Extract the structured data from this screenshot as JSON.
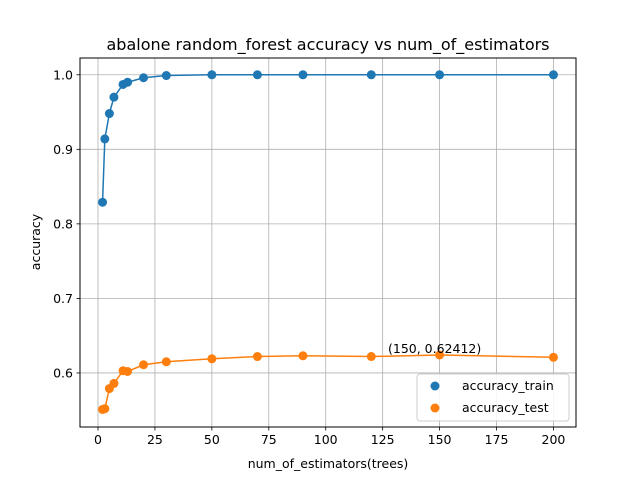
{
  "chart_data": {
    "type": "line",
    "title": "abalone random_forest accuracy vs num_of_estimators",
    "xlabel": "num_of_estimators(trees)",
    "ylabel": "accuracy",
    "xlim": [
      -7.9,
      209.9
    ],
    "ylim": [
      0.5275,
      1.0225
    ],
    "xticks": [
      0,
      25,
      50,
      75,
      100,
      125,
      150,
      175,
      200
    ],
    "xtick_labels": [
      "0",
      "25",
      "50",
      "75",
      "100",
      "125",
      "150",
      "175",
      "200"
    ],
    "yticks": [
      0.6,
      0.7,
      0.8,
      0.9,
      1.0
    ],
    "ytick_labels": [
      "0.6",
      "0.7",
      "0.8",
      "0.9",
      "1.0"
    ],
    "grid": true,
    "legend_position": "lower-right",
    "x": [
      2,
      3,
      5,
      7,
      11,
      13,
      20,
      30,
      50,
      70,
      90,
      120,
      150,
      200
    ],
    "series": [
      {
        "name": "accuracy_train",
        "color": "#1f77b4",
        "values": [
          0.829,
          0.914,
          0.948,
          0.97,
          0.987,
          0.99,
          0.996,
          0.999,
          1.0,
          1.0,
          1.0,
          1.0,
          1.0,
          1.0
        ]
      },
      {
        "name": "accuracy_test",
        "color": "#ff7f0e",
        "values": [
          0.551,
          0.552,
          0.579,
          0.586,
          0.603,
          0.602,
          0.611,
          0.615,
          0.619,
          0.622,
          0.623,
          0.622,
          0.62412,
          0.621
        ]
      }
    ],
    "annotation": {
      "text": "(150, 0.62412)",
      "x": 150,
      "y": 0.62412
    }
  }
}
